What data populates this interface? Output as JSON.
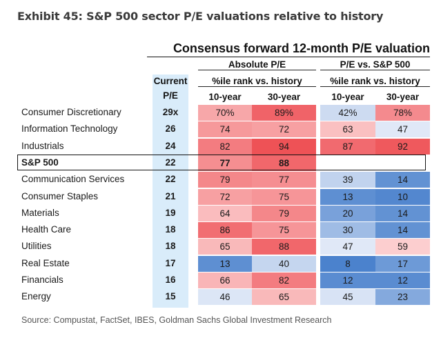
{
  "exhibit_title": "Exhibit 45: S&P 500 sector P/E valuations relative to history",
  "chart_data": {
    "type": "table",
    "title": "Consensus forward 12-month P/E valuation",
    "group_headers": {
      "current_top": "Current",
      "current_bottom": "P/E",
      "absolute": "Absolute P/E",
      "absolute_sub": "%ile rank vs. history",
      "relative": "P/E vs. S&P 500",
      "relative_sub": "%ile rank vs. history",
      "ten_year": "10-year",
      "thirty_year": "30-year"
    },
    "rows": [
      {
        "sector": "Consumer Discretionary",
        "pe": "29x",
        "abs10": "70%",
        "abs30": "89%",
        "rel10": "42%",
        "rel30": "78%",
        "n": [
          70,
          89,
          42,
          78
        ],
        "bold": false
      },
      {
        "sector": "Information Technology",
        "pe": "26",
        "abs10": "74",
        "abs30": "72",
        "rel10": "63",
        "rel30": "47",
        "n": [
          74,
          72,
          63,
          47
        ],
        "bold": false
      },
      {
        "sector": "Industrials",
        "pe": "24",
        "abs10": "82",
        "abs30": "94",
        "rel10": "87",
        "rel30": "92",
        "n": [
          82,
          94,
          87,
          92
        ],
        "bold": false
      },
      {
        "sector": "S&P 500",
        "pe": "22",
        "abs10": "77",
        "abs30": "88",
        "rel10": "",
        "rel30": "",
        "n": [
          77,
          88,
          null,
          null
        ],
        "bold": true
      },
      {
        "sector": "Communication Services",
        "pe": "22",
        "abs10": "79",
        "abs30": "77",
        "rel10": "39",
        "rel30": "14",
        "n": [
          79,
          77,
          39,
          14
        ],
        "bold": false
      },
      {
        "sector": "Consumer Staples",
        "pe": "21",
        "abs10": "72",
        "abs30": "75",
        "rel10": "13",
        "rel30": "10",
        "n": [
          72,
          75,
          13,
          10
        ],
        "bold": false
      },
      {
        "sector": "Materials",
        "pe": "19",
        "abs10": "64",
        "abs30": "79",
        "rel10": "20",
        "rel30": "14",
        "n": [
          64,
          79,
          20,
          14
        ],
        "bold": false
      },
      {
        "sector": "Health Care",
        "pe": "18",
        "abs10": "86",
        "abs30": "75",
        "rel10": "30",
        "rel30": "14",
        "n": [
          86,
          75,
          30,
          14
        ],
        "bold": false
      },
      {
        "sector": "Utilities",
        "pe": "18",
        "abs10": "65",
        "abs30": "88",
        "rel10": "47",
        "rel30": "59",
        "n": [
          65,
          88,
          47,
          59
        ],
        "bold": false
      },
      {
        "sector": "Real Estate",
        "pe": "17",
        "abs10": "13",
        "abs30": "40",
        "rel10": "8",
        "rel30": "17",
        "n": [
          13,
          40,
          8,
          17
        ],
        "bold": false
      },
      {
        "sector": "Financials",
        "pe": "16",
        "abs10": "66",
        "abs30": "82",
        "rel10": "12",
        "rel30": "12",
        "n": [
          66,
          82,
          12,
          12
        ],
        "bold": false
      },
      {
        "sector": "Energy",
        "pe": "15",
        "abs10": "46",
        "abs30": "65",
        "rel10": "45",
        "rel30": "23",
        "n": [
          46,
          65,
          45,
          23
        ],
        "bold": false
      }
    ]
  },
  "source": "Source: Compustat, FactSet, IBES, Goldman Sachs Global Investment Research"
}
